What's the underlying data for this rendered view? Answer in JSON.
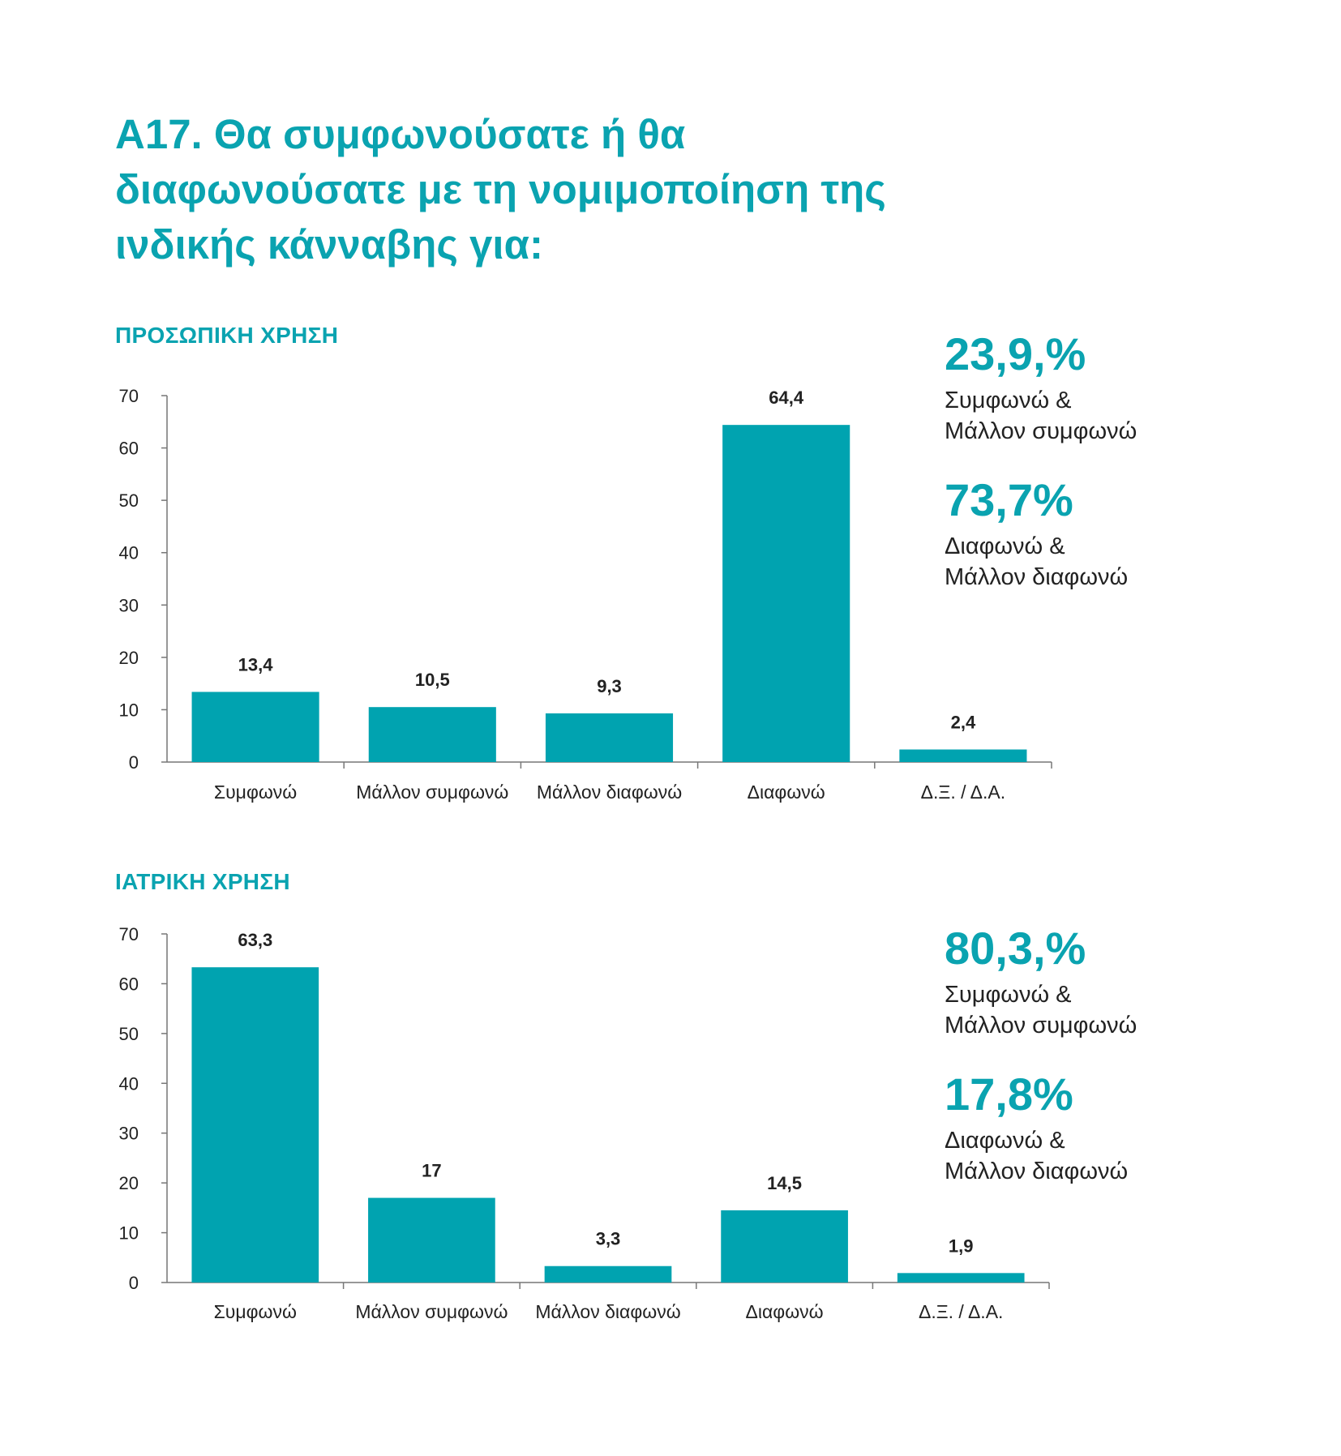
{
  "title_lines": [
    "Α17. Θα συμφωνούσατε ή θα",
    "διαφωνούσατε με τη νομιμοποίηση της",
    "ινδικής κάνναβης για:"
  ],
  "colors": {
    "accent": "#0aa3b0",
    "bar": "#00a3b0",
    "text": "#222222",
    "axis": "#777777"
  },
  "chart_data": [
    {
      "type": "bar",
      "title": "ΠΡΟΣΩΠΙΚΗ ΧΡΗΣΗ",
      "categories": [
        "Συμφωνώ",
        "Μάλλον συμφωνώ",
        "Μάλλον διαφωνώ",
        "Διαφωνώ",
        "Δ.Ξ. / Δ.Α."
      ],
      "values": [
        13.4,
        10.5,
        9.3,
        64.4,
        2.4
      ],
      "value_labels": [
        "13,4",
        "10,5",
        "9,3",
        "64,4",
        "2,4"
      ],
      "ylim": [
        0,
        70
      ],
      "yticks": [
        0,
        10,
        20,
        30,
        40,
        50,
        60,
        70
      ],
      "xlabel": "",
      "ylabel": "",
      "grid": false,
      "summary": [
        {
          "value": "23,9,%",
          "label_lines": [
            "Συμφωνώ &",
            "Μάλλον συμφωνώ"
          ]
        },
        {
          "value": "73,7%",
          "label_lines": [
            "Διαφωνώ &",
            "Μάλλον διαφωνώ"
          ]
        }
      ]
    },
    {
      "type": "bar",
      "title": "ΙΑΤΡΙΚΗ ΧΡΗΣΗ",
      "categories": [
        "Συμφωνώ",
        "Μάλλον συμφωνώ",
        "Μάλλον διαφωνώ",
        "Διαφωνώ",
        "Δ.Ξ. / Δ.Α."
      ],
      "values": [
        63.3,
        17,
        3.3,
        14.5,
        1.9
      ],
      "value_labels": [
        "63,3",
        "17",
        "3,3",
        "14,5",
        "1,9"
      ],
      "ylim": [
        0,
        70
      ],
      "yticks": [
        0,
        10,
        20,
        30,
        40,
        50,
        60,
        70
      ],
      "xlabel": "",
      "ylabel": "",
      "grid": false,
      "summary": [
        {
          "value": "80,3,%",
          "label_lines": [
            "Συμφωνώ &",
            "Μάλλον συμφωνώ"
          ]
        },
        {
          "value": "17,8%",
          "label_lines": [
            "Διαφωνώ &",
            "Μάλλον διαφωνώ"
          ]
        }
      ]
    }
  ]
}
